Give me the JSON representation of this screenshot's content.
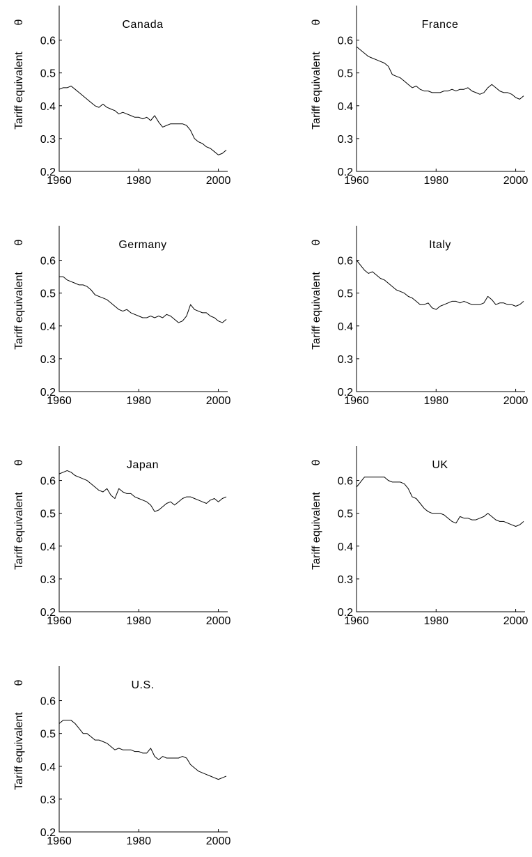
{
  "chart_data": [
    {
      "type": "line",
      "title": "Canada",
      "ylabel": "Tariff equivalent",
      "ylabel_symbol": "θ",
      "xlim": [
        1960,
        2002
      ],
      "ylim": [
        0.2,
        0.65
      ],
      "xticks": [
        1960,
        1980,
        2000
      ],
      "yticks": [
        0.2,
        0.3,
        0.4,
        0.5,
        0.6
      ],
      "grid": false,
      "series": [
        {
          "x": [
            1960,
            1961,
            1962,
            1963,
            1964,
            1965,
            1966,
            1967,
            1968,
            1969,
            1970,
            1971,
            1972,
            1973,
            1974,
            1975,
            1976,
            1977,
            1978,
            1979,
            1980,
            1981,
            1982,
            1983,
            1984,
            1985,
            1986,
            1987,
            1988,
            1989,
            1990,
            1991,
            1992,
            1993,
            1994,
            1995,
            1996,
            1997,
            1998,
            1999,
            2000,
            2001,
            2002
          ],
          "values": [
            0.45,
            0.455,
            0.455,
            0.46,
            0.45,
            0.44,
            0.43,
            0.42,
            0.41,
            0.4,
            0.395,
            0.405,
            0.395,
            0.39,
            0.385,
            0.375,
            0.38,
            0.375,
            0.37,
            0.365,
            0.365,
            0.36,
            0.365,
            0.355,
            0.37,
            0.35,
            0.335,
            0.34,
            0.345,
            0.345,
            0.345,
            0.345,
            0.34,
            0.325,
            0.3,
            0.29,
            0.285,
            0.275,
            0.27,
            0.26,
            0.25,
            0.255,
            0.265
          ]
        }
      ]
    },
    {
      "type": "line",
      "title": "France",
      "ylabel": "Tariff equivalent",
      "ylabel_symbol": "θ",
      "xlim": [
        1960,
        2002
      ],
      "ylim": [
        0.2,
        0.65
      ],
      "xticks": [
        1960,
        1980,
        2000
      ],
      "yticks": [
        0.2,
        0.3,
        0.4,
        0.5,
        0.6
      ],
      "grid": false,
      "series": [
        {
          "x": [
            1960,
            1961,
            1962,
            1963,
            1964,
            1965,
            1966,
            1967,
            1968,
            1969,
            1970,
            1971,
            1972,
            1973,
            1974,
            1975,
            1976,
            1977,
            1978,
            1979,
            1980,
            1981,
            1982,
            1983,
            1984,
            1985,
            1986,
            1987,
            1988,
            1989,
            1990,
            1991,
            1992,
            1993,
            1994,
            1995,
            1996,
            1997,
            1998,
            1999,
            2000,
            2001,
            2002
          ],
          "values": [
            0.58,
            0.57,
            0.56,
            0.55,
            0.545,
            0.54,
            0.535,
            0.53,
            0.52,
            0.495,
            0.49,
            0.485,
            0.475,
            0.465,
            0.455,
            0.46,
            0.45,
            0.445,
            0.445,
            0.44,
            0.44,
            0.44,
            0.445,
            0.445,
            0.45,
            0.445,
            0.45,
            0.45,
            0.455,
            0.445,
            0.44,
            0.435,
            0.44,
            0.455,
            0.465,
            0.455,
            0.445,
            0.44,
            0.44,
            0.435,
            0.425,
            0.42,
            0.43
          ]
        }
      ]
    },
    {
      "type": "line",
      "title": "Germany",
      "ylabel": "Tariff equivalent",
      "ylabel_symbol": "θ",
      "xlim": [
        1960,
        2002
      ],
      "ylim": [
        0.2,
        0.65
      ],
      "xticks": [
        1960,
        1980,
        2000
      ],
      "yticks": [
        0.2,
        0.3,
        0.4,
        0.5,
        0.6
      ],
      "grid": false,
      "series": [
        {
          "x": [
            1960,
            1961,
            1962,
            1963,
            1964,
            1965,
            1966,
            1967,
            1968,
            1969,
            1970,
            1971,
            1972,
            1973,
            1974,
            1975,
            1976,
            1977,
            1978,
            1979,
            1980,
            1981,
            1982,
            1983,
            1984,
            1985,
            1986,
            1987,
            1988,
            1989,
            1990,
            1991,
            1992,
            1993,
            1994,
            1995,
            1996,
            1997,
            1998,
            1999,
            2000,
            2001,
            2002
          ],
          "values": [
            0.55,
            0.55,
            0.54,
            0.535,
            0.53,
            0.525,
            0.525,
            0.52,
            0.51,
            0.495,
            0.49,
            0.485,
            0.48,
            0.47,
            0.46,
            0.45,
            0.445,
            0.45,
            0.44,
            0.435,
            0.43,
            0.425,
            0.425,
            0.43,
            0.425,
            0.43,
            0.425,
            0.435,
            0.43,
            0.42,
            0.41,
            0.415,
            0.43,
            0.465,
            0.45,
            0.445,
            0.44,
            0.44,
            0.43,
            0.425,
            0.415,
            0.41,
            0.42
          ]
        }
      ]
    },
    {
      "type": "line",
      "title": "Italy",
      "ylabel": "Tariff equivalent",
      "ylabel_symbol": "θ",
      "xlim": [
        1960,
        2002
      ],
      "ylim": [
        0.2,
        0.65
      ],
      "xticks": [
        1960,
        1980,
        2000
      ],
      "yticks": [
        0.2,
        0.3,
        0.4,
        0.5,
        0.6
      ],
      "grid": false,
      "series": [
        {
          "x": [
            1960,
            1961,
            1962,
            1963,
            1964,
            1965,
            1966,
            1967,
            1968,
            1969,
            1970,
            1971,
            1972,
            1973,
            1974,
            1975,
            1976,
            1977,
            1978,
            1979,
            1980,
            1981,
            1982,
            1983,
            1984,
            1985,
            1986,
            1987,
            1988,
            1989,
            1990,
            1991,
            1992,
            1993,
            1994,
            1995,
            1996,
            1997,
            1998,
            1999,
            2000,
            2001,
            2002
          ],
          "values": [
            0.6,
            0.585,
            0.57,
            0.56,
            0.565,
            0.555,
            0.545,
            0.54,
            0.53,
            0.52,
            0.51,
            0.505,
            0.5,
            0.49,
            0.485,
            0.475,
            0.465,
            0.465,
            0.47,
            0.455,
            0.45,
            0.46,
            0.465,
            0.47,
            0.475,
            0.475,
            0.47,
            0.475,
            0.47,
            0.465,
            0.465,
            0.465,
            0.47,
            0.49,
            0.48,
            0.465,
            0.47,
            0.47,
            0.465,
            0.465,
            0.46,
            0.465,
            0.475
          ]
        }
      ]
    },
    {
      "type": "line",
      "title": "Japan",
      "ylabel": "Tariff equivalent",
      "ylabel_symbol": "θ",
      "xlim": [
        1960,
        2002
      ],
      "ylim": [
        0.2,
        0.65
      ],
      "xticks": [
        1960,
        1980,
        2000
      ],
      "yticks": [
        0.2,
        0.3,
        0.4,
        0.5,
        0.6
      ],
      "grid": false,
      "series": [
        {
          "x": [
            1960,
            1961,
            1962,
            1963,
            1964,
            1965,
            1966,
            1967,
            1968,
            1969,
            1970,
            1971,
            1972,
            1973,
            1974,
            1975,
            1976,
            1977,
            1978,
            1979,
            1980,
            1981,
            1982,
            1983,
            1984,
            1985,
            1986,
            1987,
            1988,
            1989,
            1990,
            1991,
            1992,
            1993,
            1994,
            1995,
            1996,
            1997,
            1998,
            1999,
            2000,
            2001,
            2002
          ],
          "values": [
            0.62,
            0.625,
            0.63,
            0.625,
            0.615,
            0.61,
            0.605,
            0.6,
            0.59,
            0.58,
            0.57,
            0.565,
            0.575,
            0.555,
            0.545,
            0.575,
            0.565,
            0.56,
            0.56,
            0.55,
            0.545,
            0.54,
            0.535,
            0.525,
            0.505,
            0.51,
            0.52,
            0.53,
            0.535,
            0.525,
            0.535,
            0.545,
            0.55,
            0.55,
            0.545,
            0.54,
            0.535,
            0.53,
            0.54,
            0.545,
            0.535,
            0.545,
            0.55
          ]
        }
      ]
    },
    {
      "type": "line",
      "title": "UK",
      "ylabel": "Tariff equivalent",
      "ylabel_symbol": "θ",
      "xlim": [
        1960,
        2002
      ],
      "ylim": [
        0.2,
        0.65
      ],
      "xticks": [
        1960,
        1980,
        2000
      ],
      "yticks": [
        0.2,
        0.3,
        0.4,
        0.5,
        0.6
      ],
      "grid": false,
      "series": [
        {
          "x": [
            1960,
            1961,
            1962,
            1963,
            1964,
            1965,
            1966,
            1967,
            1968,
            1969,
            1970,
            1971,
            1972,
            1973,
            1974,
            1975,
            1976,
            1977,
            1978,
            1979,
            1980,
            1981,
            1982,
            1983,
            1984,
            1985,
            1986,
            1987,
            1988,
            1989,
            1990,
            1991,
            1992,
            1993,
            1994,
            1995,
            1996,
            1997,
            1998,
            1999,
            2000,
            2001,
            2002
          ],
          "values": [
            0.58,
            0.595,
            0.61,
            0.61,
            0.61,
            0.61,
            0.61,
            0.61,
            0.6,
            0.595,
            0.595,
            0.595,
            0.59,
            0.575,
            0.55,
            0.545,
            0.53,
            0.515,
            0.505,
            0.5,
            0.5,
            0.5,
            0.495,
            0.485,
            0.475,
            0.47,
            0.49,
            0.485,
            0.485,
            0.48,
            0.48,
            0.485,
            0.49,
            0.5,
            0.49,
            0.48,
            0.475,
            0.475,
            0.47,
            0.465,
            0.46,
            0.465,
            0.475
          ]
        }
      ]
    },
    {
      "type": "line",
      "title": "U.S.",
      "ylabel": "Tariff equivalent",
      "ylabel_symbol": "θ",
      "xlim": [
        1960,
        2002
      ],
      "ylim": [
        0.2,
        0.65
      ],
      "xticks": [
        1960,
        1980,
        2000
      ],
      "yticks": [
        0.2,
        0.3,
        0.4,
        0.5,
        0.6
      ],
      "grid": false,
      "series": [
        {
          "x": [
            1960,
            1961,
            1962,
            1963,
            1964,
            1965,
            1966,
            1967,
            1968,
            1969,
            1970,
            1971,
            1972,
            1973,
            1974,
            1975,
            1976,
            1977,
            1978,
            1979,
            1980,
            1981,
            1982,
            1983,
            1984,
            1985,
            1986,
            1987,
            1988,
            1989,
            1990,
            1991,
            1992,
            1993,
            1994,
            1995,
            1996,
            1997,
            1998,
            1999,
            2000,
            2001,
            2002
          ],
          "values": [
            0.53,
            0.54,
            0.54,
            0.54,
            0.53,
            0.515,
            0.5,
            0.5,
            0.49,
            0.48,
            0.48,
            0.475,
            0.47,
            0.46,
            0.45,
            0.455,
            0.45,
            0.45,
            0.45,
            0.445,
            0.445,
            0.44,
            0.44,
            0.455,
            0.43,
            0.42,
            0.43,
            0.425,
            0.425,
            0.425,
            0.425,
            0.43,
            0.425,
            0.405,
            0.395,
            0.385,
            0.38,
            0.375,
            0.37,
            0.365,
            0.36,
            0.365,
            0.37
          ]
        }
      ]
    }
  ]
}
